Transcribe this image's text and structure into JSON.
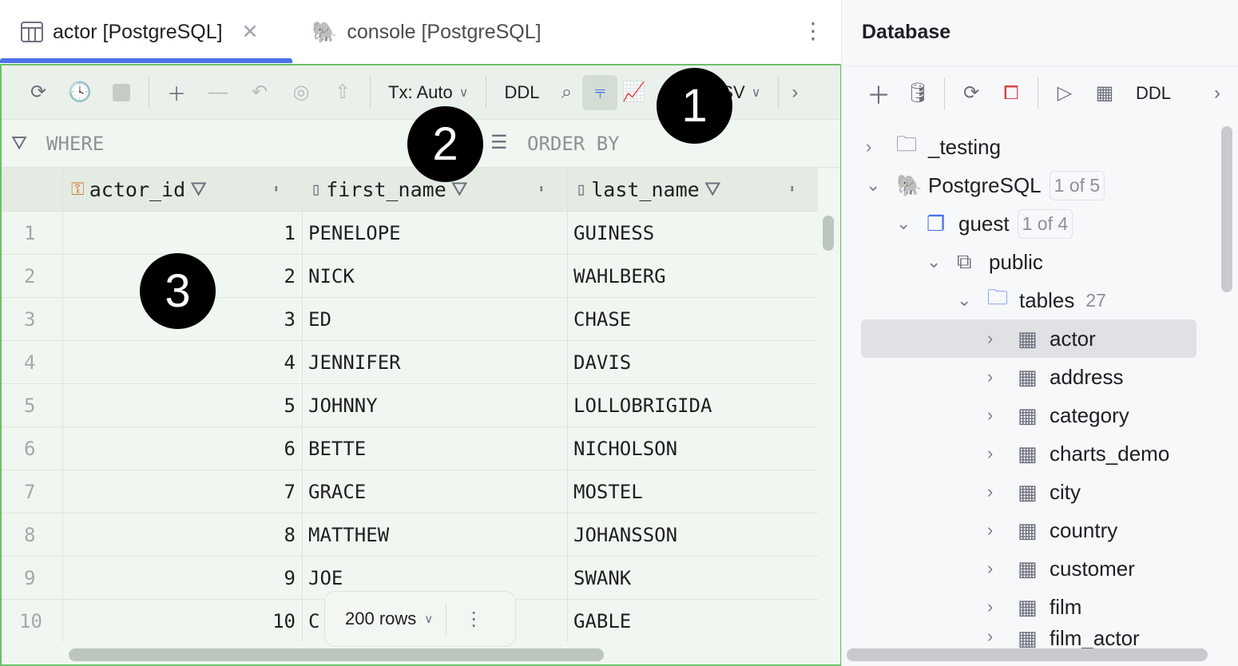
{
  "editor_tabs": [
    {
      "label": "actor [PostgreSQL]",
      "icon": "table-icon",
      "active": true
    },
    {
      "label": "console [PostgreSQL]",
      "icon": "postgresql-icon",
      "active": false
    }
  ],
  "toolbar": {
    "tx_label": "Tx: Auto",
    "ddl_label": "DDL",
    "export_label": "CSV"
  },
  "filter": {
    "where_label": "WHERE",
    "order_by_label": "ORDER BY"
  },
  "grid": {
    "columns": [
      "actor_id",
      "first_name",
      "last_name"
    ],
    "rows": [
      [
        "1",
        "1",
        "PENELOPE",
        "GUINESS"
      ],
      [
        "2",
        "2",
        "NICK",
        "WAHLBERG"
      ],
      [
        "3",
        "3",
        "ED",
        "CHASE"
      ],
      [
        "4",
        "4",
        "JENNIFER",
        "DAVIS"
      ],
      [
        "5",
        "5",
        "JOHNNY",
        "LOLLOBRIGIDA"
      ],
      [
        "6",
        "6",
        "BETTE",
        "NICHOLSON"
      ],
      [
        "7",
        "7",
        "GRACE",
        "MOSTEL"
      ],
      [
        "8",
        "8",
        "MATTHEW",
        "JOHANSSON"
      ],
      [
        "9",
        "9",
        "JOE",
        "SWANK"
      ],
      [
        "10",
        "10",
        "C",
        "GABLE"
      ]
    ],
    "page_size": "200 rows"
  },
  "callouts": [
    "1",
    "2",
    "3"
  ],
  "database_panel": {
    "title": "Database",
    "ddl_label": "DDL",
    "tree": [
      {
        "label": "_testing",
        "icon": "folder-icon",
        "expanded": false
      },
      {
        "label": "PostgreSQL",
        "icon": "postgresql-icon",
        "badge": "1 of 5",
        "expanded": true
      },
      {
        "label": "guest",
        "icon": "database-icon",
        "badge": "1 of 4",
        "expanded": true
      },
      {
        "label": "public",
        "icon": "schema-icon",
        "expanded": true
      },
      {
        "label": "tables",
        "icon": "folder-icon",
        "count": "27",
        "expanded": true
      },
      {
        "label": "actor",
        "icon": "table-icon",
        "selected": true
      },
      {
        "label": "address",
        "icon": "table-icon"
      },
      {
        "label": "category",
        "icon": "table-icon"
      },
      {
        "label": "charts_demo",
        "icon": "table-icon"
      },
      {
        "label": "city",
        "icon": "table-icon"
      },
      {
        "label": "country",
        "icon": "table-icon"
      },
      {
        "label": "customer",
        "icon": "table-icon"
      },
      {
        "label": "film",
        "icon": "table-icon"
      },
      {
        "label": "film_actor",
        "icon": "table-icon"
      }
    ]
  },
  "colors": {
    "accent": "#4a72e8",
    "frame": "#6cbf6a",
    "grid_bg": "#f0f7f0"
  }
}
